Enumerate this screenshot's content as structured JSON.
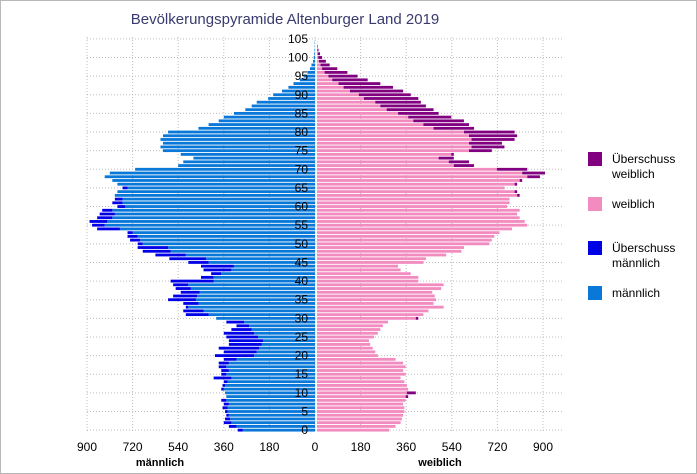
{
  "chart_data": {
    "type": "bar",
    "orientation": "horizontal-population-pyramid",
    "title": "Bevölkerungspyramide Altenburger Land 2019",
    "xlabel_left": "männlich",
    "xlabel_right": "weiblich",
    "xlim": [
      -900,
      900
    ],
    "x_ticks": [
      -900,
      -720,
      -540,
      -360,
      -180,
      0,
      180,
      360,
      540,
      720,
      900
    ],
    "x_tick_labels": [
      "900",
      "720",
      "540",
      "360",
      "180",
      "0",
      "180",
      "360",
      "540",
      "720",
      "900"
    ],
    "y_ticks": [
      0,
      5,
      10,
      15,
      20,
      25,
      30,
      35,
      40,
      45,
      50,
      55,
      60,
      65,
      70,
      75,
      80,
      85,
      90,
      95,
      100,
      105
    ],
    "y_tick_labels": [
      "0",
      "5",
      "10",
      "15",
      "20",
      "25",
      "30",
      "35",
      "40",
      "45",
      "50",
      "55",
      "60",
      "65",
      "70",
      "75",
      "80",
      "85",
      "90",
      "95",
      "100",
      "105"
    ],
    "grid": true,
    "legend_position": "right",
    "colors": {
      "maennlich": "#0a78d8",
      "ueberschuss_maennlich": "#0000e6",
      "weiblich": "#f28cc0",
      "ueberschuss_weiblich": "#800080",
      "grid": "#bdbdbd"
    },
    "legend": [
      {
        "label": "Überschuss\nweiblich",
        "color": "#800080"
      },
      {
        "label": "weiblich",
        "color": "#f28cc0"
      },
      {
        "label": "Überschuss\nmännlich",
        "color": "#0000e6"
      },
      {
        "label": "männlich",
        "color": "#0a78d8"
      }
    ],
    "ages": [
      0,
      1,
      2,
      3,
      4,
      5,
      6,
      7,
      8,
      9,
      10,
      11,
      12,
      13,
      14,
      15,
      16,
      17,
      18,
      19,
      20,
      21,
      22,
      23,
      24,
      25,
      26,
      27,
      28,
      29,
      30,
      31,
      32,
      33,
      34,
      35,
      36,
      37,
      38,
      39,
      40,
      41,
      42,
      43,
      44,
      45,
      46,
      47,
      48,
      49,
      50,
      51,
      52,
      53,
      54,
      55,
      56,
      57,
      58,
      59,
      60,
      61,
      62,
      63,
      64,
      65,
      66,
      67,
      68,
      69,
      70,
      71,
      72,
      73,
      74,
      75,
      76,
      77,
      78,
      79,
      80,
      81,
      82,
      83,
      84,
      85,
      86,
      87,
      88,
      89,
      90,
      91,
      92,
      93,
      94,
      95,
      96,
      97,
      98,
      99,
      100,
      101,
      102,
      103,
      104,
      105
    ],
    "series": [
      {
        "name": "männlich",
        "values": [
          305,
          340,
          360,
          355,
          350,
          355,
          365,
          360,
          370,
          350,
          355,
          370,
          365,
          360,
          400,
          370,
          370,
          380,
          380,
          360,
          395,
          360,
          380,
          340,
          340,
          350,
          360,
          330,
          310,
          350,
          390,
          510,
          520,
          510,
          520,
          580,
          560,
          530,
          550,
          560,
          570,
          450,
          410,
          440,
          450,
          500,
          575,
          630,
          680,
          700,
          700,
          730,
          740,
          740,
          860,
          880,
          890,
          860,
          850,
          840,
          780,
          800,
          790,
          790,
          780,
          760,
          780,
          800,
          830,
          810,
          710,
          540,
          520,
          480,
          530,
          600,
          610,
          600,
          610,
          600,
          580,
          460,
          420,
          380,
          360,
          320,
          275,
          250,
          230,
          185,
          165,
          130,
          105,
          85,
          60,
          45,
          30,
          20,
          14,
          8,
          5,
          3,
          2,
          1,
          1,
          0
        ]
      },
      {
        "name": "weiblich",
        "values": [
          285,
          310,
          330,
          335,
          340,
          345,
          345,
          340,
          350,
          360,
          390,
          360,
          355,
          345,
          330,
          350,
          340,
          350,
          340,
          310,
          240,
          230,
          220,
          210,
          205,
          225,
          240,
          250,
          260,
          280,
          400,
          420,
          440,
          500,
          460,
          470,
          465,
          455,
          490,
          500,
          400,
          400,
          370,
          330,
          320,
          420,
          430,
          510,
          570,
          580,
          680,
          690,
          700,
          720,
          770,
          830,
          820,
          800,
          790,
          800,
          750,
          760,
          760,
          800,
          790,
          740,
          790,
          810,
          880,
          900,
          830,
          620,
          600,
          540,
          540,
          690,
          740,
          730,
          780,
          790,
          780,
          620,
          600,
          580,
          530,
          480,
          460,
          430,
          410,
          400,
          370,
          340,
          300,
          250,
          200,
          160,
          120,
          80,
          50,
          35,
          20,
          12,
          6,
          3,
          1,
          0
        ]
      }
    ]
  }
}
